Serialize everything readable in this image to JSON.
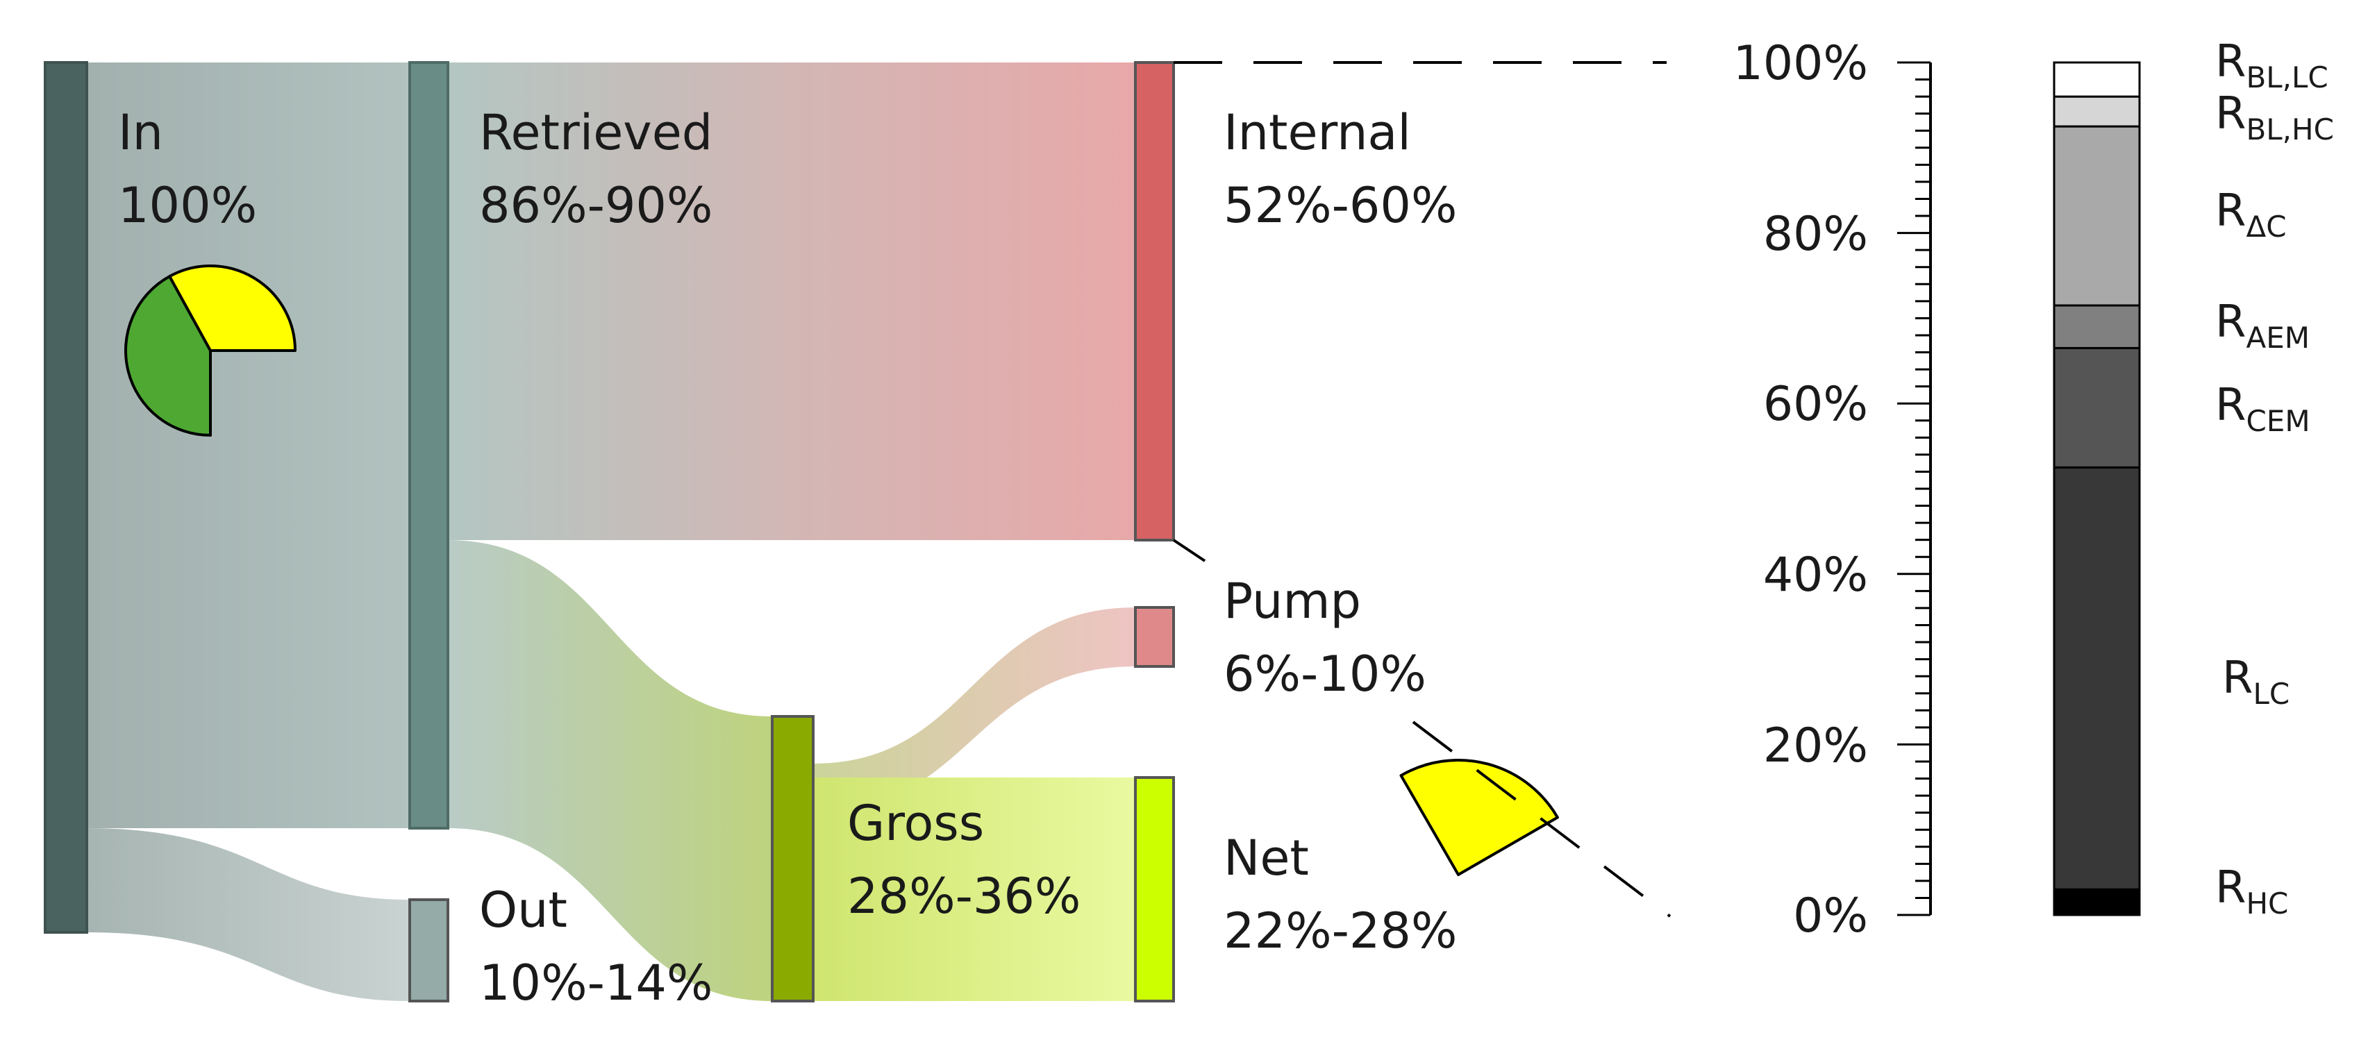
{
  "nodes": {
    "in": {
      "name": "In",
      "value": "100%",
      "color": "#4b6360"
    },
    "retrieved": {
      "name": "Retrieved",
      "value": "86%-90%",
      "color": "#6a8c86"
    },
    "out": {
      "name": "Out",
      "value": "10%-14%",
      "color": "#94aba7"
    },
    "internal": {
      "name": "Internal",
      "value": "52%-60%",
      "color": "#d76264"
    },
    "gross": {
      "name": "Gross",
      "value": "28%-36%",
      "color": "#8aaa00"
    },
    "pump": {
      "name": "Pump",
      "value": "6%-10%",
      "color": "#e0898a"
    },
    "net": {
      "name": "Net",
      "value": "22%-28%",
      "color": "#ccff00"
    }
  },
  "axis": {
    "ticks": [
      "0%",
      "20%",
      "40%",
      "60%",
      "80%",
      "100%"
    ]
  },
  "stacked_bar": {
    "segments": [
      {
        "id": "hc",
        "base": "R",
        "sub": "HC",
        "from": 0,
        "to": 3,
        "color": "#000000"
      },
      {
        "id": "lc",
        "base": "R",
        "sub": "LC",
        "from": 3,
        "to": 52.5,
        "color": "#383838"
      },
      {
        "id": "cem",
        "base": "R",
        "sub": "CEM",
        "from": 52.5,
        "to": 66.5,
        "color": "#555555"
      },
      {
        "id": "aem",
        "base": "R",
        "sub": "AEM",
        "from": 66.5,
        "to": 71.5,
        "color": "#808080"
      },
      {
        "id": "dc",
        "base": "R",
        "sub": "ΔC",
        "from": 71.5,
        "to": 92.5,
        "color": "#a9a9a9"
      },
      {
        "id": "blhc",
        "base": "R",
        "sub": "BL,HC",
        "from": 92.5,
        "to": 96,
        "color": "#d6d6d6"
      },
      {
        "id": "bllc",
        "base": "R",
        "sub": "BL,LC",
        "from": 96,
        "to": 100,
        "color": "#ffffff"
      }
    ]
  },
  "pie_in": {
    "slices": [
      {
        "label": "green",
        "fraction": 0.42,
        "color": "#4ea832"
      },
      {
        "label": "yellow",
        "fraction": 0.33,
        "color": "#ffff00"
      }
    ]
  },
  "pie_net": {
    "slices": [
      {
        "label": "yellow",
        "fraction": 0.25,
        "color": "#ffff00"
      }
    ]
  }
}
